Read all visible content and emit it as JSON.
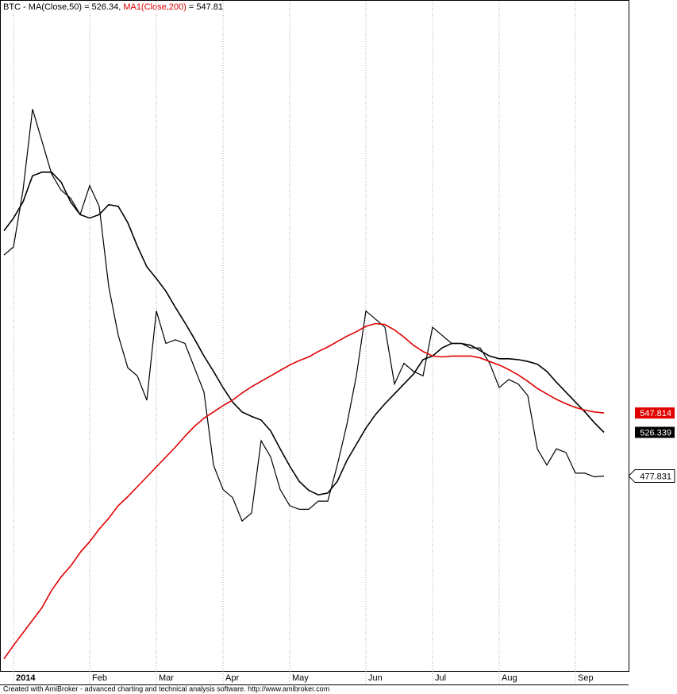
{
  "chart_data": {
    "type": "line",
    "title_parts": [
      {
        "text": "BTC - MA(Close,50) = 526.34, ",
        "color": "#000000"
      },
      {
        "text": "MA1(Close,200)",
        "color": "#e00000"
      },
      {
        "text": " = 547.81",
        "color": "#000000"
      }
    ],
    "footer": "Created with AmiBroker - advanced charting and technical analysis software. http://www.amibroker.com",
    "categories": [
      null,
      "2014",
      null,
      null,
      null,
      null,
      null,
      null,
      null,
      "Feb",
      null,
      null,
      null,
      null,
      null,
      null,
      "Mar",
      null,
      null,
      null,
      null,
      null,
      null,
      "Apr",
      null,
      null,
      null,
      null,
      null,
      null,
      "May",
      null,
      null,
      null,
      null,
      null,
      null,
      null,
      "Jun",
      null,
      null,
      null,
      null,
      null,
      null,
      "Jul",
      null,
      null,
      null,
      null,
      null,
      null,
      "Aug",
      null,
      null,
      null,
      null,
      null,
      null,
      null,
      "Sep",
      null,
      null,
      null
    ],
    "ylim": [
      261.6,
      1006
    ],
    "grid": true,
    "series": [
      {
        "name": "BTC",
        "color": "#000000",
        "label_bg": "#ffffff",
        "values": [
          723,
          732,
          795,
          885,
          849,
          813,
          795,
          786,
          768,
          800,
          777,
          688,
          634,
          598,
          589,
          562,
          661,
          625,
          629,
          625,
          598,
          571,
          490,
          463,
          454,
          428,
          437,
          517,
          499,
          463,
          445,
          441,
          441,
          450,
          450,
          490,
          535,
          589,
          661,
          652,
          643,
          580,
          603,
          594,
          589,
          643,
          634,
          625,
          625,
          620,
          620,
          603,
          576,
          585,
          580,
          567,
          508,
          490,
          508,
          504,
          481,
          481,
          477,
          477.831
        ]
      },
      {
        "name": "MA(Close,50)",
        "color": "#000000",
        "label_bg": "#000000",
        "values": [
          750,
          764,
          782,
          811,
          815,
          815,
          804,
          782,
          768,
          764,
          768,
          779,
          777,
          759,
          733,
          710,
          697,
          683,
          665,
          648,
          630,
          611,
          594,
          576,
          560,
          549,
          544,
          540,
          528,
          508,
          489,
          472,
          462,
          457,
          459,
          472,
          495,
          513,
          531,
          546,
          558,
          569,
          580,
          591,
          607,
          611,
          620,
          625,
          625,
          623,
          617,
          611,
          608,
          608,
          607,
          605,
          602,
          594,
          582,
          571,
          560,
          549,
          537,
          526.339
        ]
      },
      {
        "name": "MA1(Close,200)",
        "color": "#e00000",
        "label_bg": "#e00000",
        "values": [
          275,
          290,
          304,
          318,
          332,
          351,
          366,
          378,
          393,
          405,
          419,
          431,
          445,
          455,
          466,
          477,
          488,
          499,
          510,
          522,
          533,
          542,
          549,
          556,
          562,
          570,
          577,
          583,
          589,
          595,
          601,
          606,
          610,
          616,
          621,
          627,
          633,
          638,
          644,
          647,
          646,
          640,
          632,
          623,
          616,
          611,
          610,
          611,
          611,
          611,
          609,
          605,
          601,
          596,
          590,
          583,
          575,
          569,
          563,
          558,
          554,
          551,
          549,
          547.814
        ]
      }
    ]
  }
}
